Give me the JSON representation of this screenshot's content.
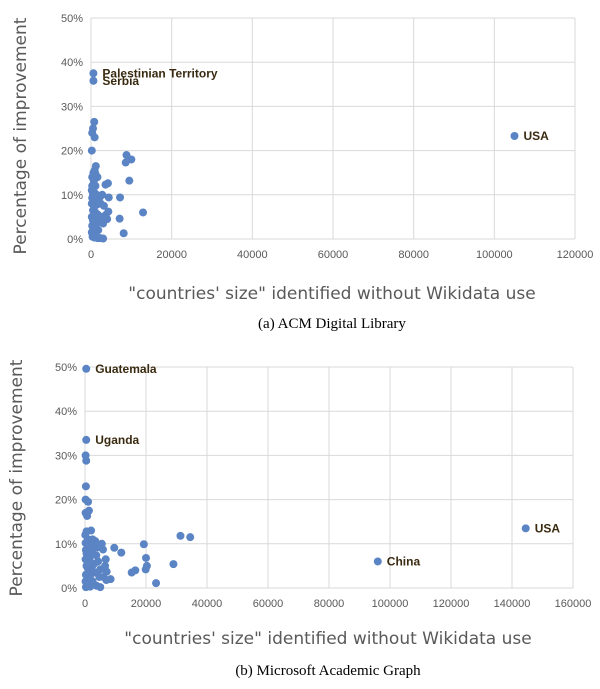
{
  "chart_data": [
    {
      "type": "scatter",
      "caption": "(a) ACM Digital Library",
      "xlabel": "\"countries' size\" identified without Wikidata use",
      "ylabel": "Percentage of improvement",
      "xlim": [
        0,
        120000
      ],
      "ylim": [
        0,
        50
      ],
      "xticks": [
        0,
        20000,
        40000,
        60000,
        80000,
        100000,
        120000
      ],
      "yticks": [
        0,
        10,
        20,
        30,
        40,
        50
      ],
      "ytick_suffix": "%",
      "grid": true,
      "color": "#5b84c4",
      "annotations": [
        {
          "text": "Palestinian Territory",
          "x": 600,
          "y": 37.5
        },
        {
          "text": "Serbia",
          "x": 600,
          "y": 35.8
        },
        {
          "text": "USA",
          "x": 105000,
          "y": 23.3
        }
      ],
      "points": [
        [
          600,
          37.5
        ],
        [
          600,
          35.8
        ],
        [
          105000,
          23.3
        ],
        [
          800,
          26.5
        ],
        [
          500,
          25
        ],
        [
          300,
          24
        ],
        [
          900,
          23
        ],
        [
          200,
          20
        ],
        [
          1200,
          16.5
        ],
        [
          900,
          15.5
        ],
        [
          600,
          15
        ],
        [
          1100,
          14.8
        ],
        [
          300,
          14
        ],
        [
          1600,
          14
        ],
        [
          700,
          13
        ],
        [
          300,
          12
        ],
        [
          1100,
          12
        ],
        [
          3600,
          12.3
        ],
        [
          4200,
          12.6
        ],
        [
          200,
          11
        ],
        [
          800,
          10.5
        ],
        [
          500,
          10
        ],
        [
          1400,
          10
        ],
        [
          300,
          9.3
        ],
        [
          2200,
          9.5
        ],
        [
          2800,
          10
        ],
        [
          4400,
          9.4
        ],
        [
          7200,
          9.4
        ],
        [
          600,
          9
        ],
        [
          1000,
          8.5
        ],
        [
          200,
          8
        ],
        [
          1500,
          7.8
        ],
        [
          2400,
          8
        ],
        [
          800,
          7.3
        ],
        [
          3200,
          7.5
        ],
        [
          500,
          6.5
        ],
        [
          4300,
          6.2
        ],
        [
          1100,
          6
        ],
        [
          1700,
          5.5
        ],
        [
          3700,
          5.5
        ],
        [
          200,
          5
        ],
        [
          1000,
          5
        ],
        [
          2600,
          5
        ],
        [
          4000,
          4.5
        ],
        [
          500,
          4.2
        ],
        [
          1600,
          4
        ],
        [
          3000,
          3.5
        ],
        [
          7100,
          4.6
        ],
        [
          300,
          3
        ],
        [
          1200,
          3
        ],
        [
          500,
          2
        ],
        [
          1800,
          2
        ],
        [
          200,
          1.5
        ],
        [
          1200,
          1
        ],
        [
          400,
          0.5
        ],
        [
          900,
          0.3
        ],
        [
          1700,
          0.2
        ],
        [
          2300,
          0.2
        ],
        [
          3000,
          0.1
        ],
        [
          8800,
          19
        ],
        [
          10000,
          18
        ],
        [
          8600,
          17.3
        ],
        [
          9500,
          13.2
        ],
        [
          12900,
          6
        ],
        [
          8100,
          1.3
        ]
      ]
    },
    {
      "type": "scatter",
      "caption": "(b) Microsoft Academic Graph",
      "xlabel": "\"countries' size\" identified without Wikidata use",
      "ylabel": "Percentage of improvement",
      "xlim": [
        0,
        160000
      ],
      "ylim": [
        0,
        50
      ],
      "xticks": [
        0,
        20000,
        40000,
        60000,
        80000,
        100000,
        120000,
        140000,
        160000
      ],
      "yticks": [
        0,
        10,
        20,
        30,
        40,
        50
      ],
      "ytick_suffix": "%",
      "grid": true,
      "color": "#5b84c4",
      "annotations": [
        {
          "text": "Guatemala",
          "x": 400,
          "y": 49.6
        },
        {
          "text": "Uganda",
          "x": 400,
          "y": 33.5
        },
        {
          "text": "USA",
          "x": 144500,
          "y": 13.5
        },
        {
          "text": "China",
          "x": 96000,
          "y": 6
        }
      ],
      "points": [
        [
          400,
          49.6
        ],
        [
          400,
          33.5
        ],
        [
          144500,
          13.5
        ],
        [
          96000,
          6
        ],
        [
          200,
          30
        ],
        [
          400,
          28.8
        ],
        [
          300,
          23
        ],
        [
          200,
          20
        ],
        [
          1000,
          19.5
        ],
        [
          1300,
          17.5
        ],
        [
          200,
          17
        ],
        [
          700,
          16.3
        ],
        [
          2000,
          13
        ],
        [
          500,
          12.8
        ],
        [
          100,
          12
        ],
        [
          1000,
          11
        ],
        [
          2500,
          11
        ],
        [
          3400,
          10.6
        ],
        [
          200,
          10.2
        ],
        [
          700,
          10
        ],
        [
          1700,
          9.8
        ],
        [
          2900,
          9.7
        ],
        [
          5500,
          10
        ],
        [
          1200,
          9
        ],
        [
          4100,
          9.2
        ],
        [
          5900,
          8.7
        ],
        [
          9600,
          9.1
        ],
        [
          11900,
          8
        ],
        [
          300,
          8.6
        ],
        [
          2300,
          8.2
        ],
        [
          3700,
          7.4
        ],
        [
          500,
          7.8
        ],
        [
          1500,
          7
        ],
        [
          6800,
          6.5
        ],
        [
          200,
          6.5
        ],
        [
          4300,
          6
        ],
        [
          1700,
          6
        ],
        [
          3000,
          5.5
        ],
        [
          6600,
          5
        ],
        [
          500,
          5
        ],
        [
          2400,
          5
        ],
        [
          900,
          4.5
        ],
        [
          5000,
          4.2
        ],
        [
          1500,
          4
        ],
        [
          7100,
          3.7
        ],
        [
          16500,
          4
        ],
        [
          15300,
          3.5
        ],
        [
          3300,
          3.5
        ],
        [
          300,
          3
        ],
        [
          1800,
          3
        ],
        [
          4700,
          2.5
        ],
        [
          6000,
          2.5
        ],
        [
          8400,
          2
        ],
        [
          1200,
          2
        ],
        [
          7000,
          1.8
        ],
        [
          200,
          1.5
        ],
        [
          2500,
          1.5
        ],
        [
          900,
          1
        ],
        [
          3800,
          0.5
        ],
        [
          1700,
          0.3
        ],
        [
          300,
          0.2
        ],
        [
          5000,
          0.2
        ],
        [
          19300,
          9.9
        ],
        [
          31300,
          11.8
        ],
        [
          34500,
          11.5
        ],
        [
          20000,
          6.8
        ],
        [
          20300,
          5
        ],
        [
          29000,
          5.4
        ],
        [
          19900,
          4.2
        ],
        [
          23300,
          1.1
        ]
      ]
    }
  ]
}
